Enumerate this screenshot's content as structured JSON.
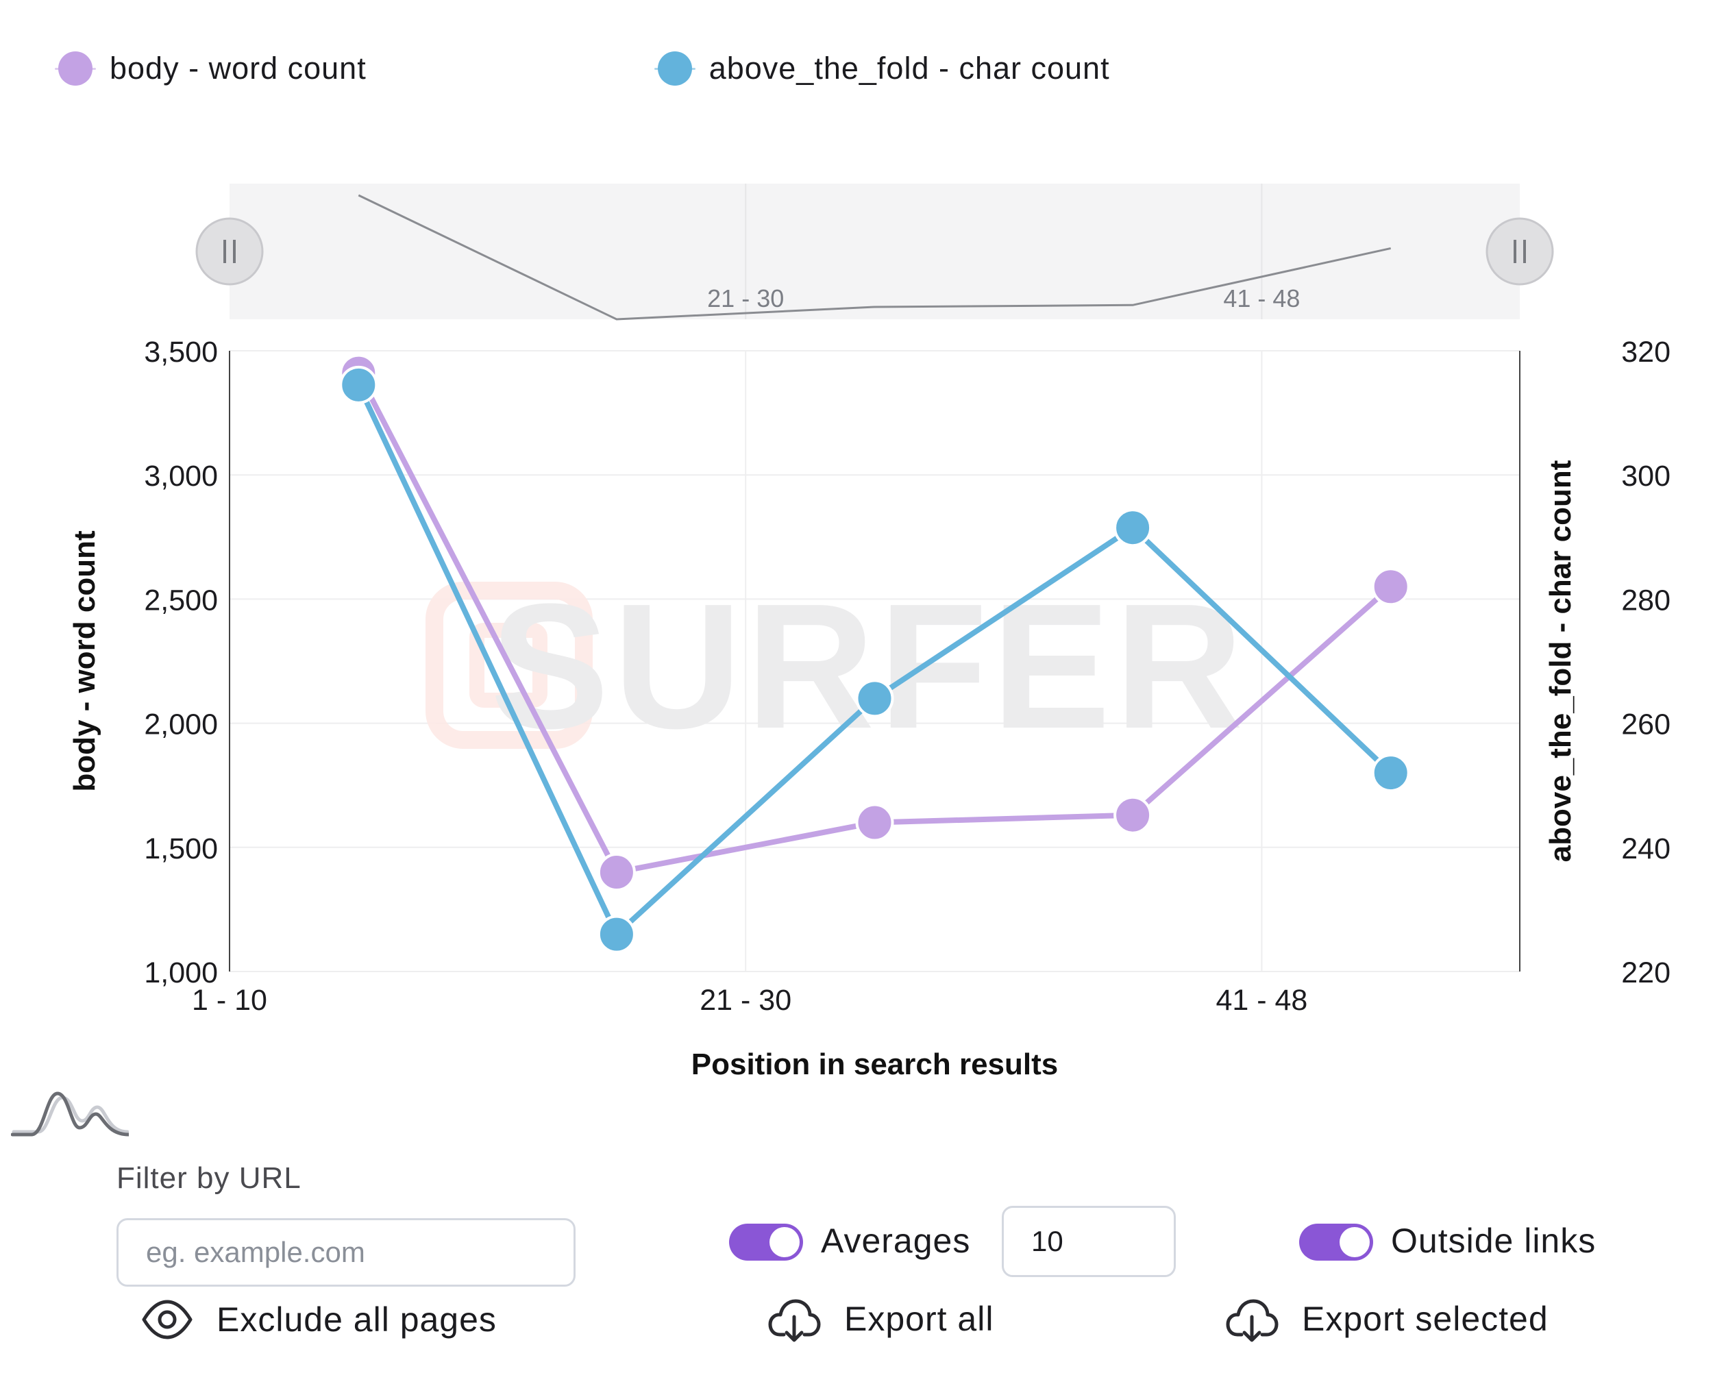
{
  "legend": [
    {
      "label": "body - word count",
      "color": "#c3a2e4",
      "icon": "circle-dot-icon"
    },
    {
      "label": "above_the_fold - char count",
      "color": "#63b3dc",
      "icon": "circle-dot-icon"
    }
  ],
  "chart_data": {
    "type": "line",
    "x": [
      1,
      2,
      3,
      4,
      5
    ],
    "x_ticks": [
      {
        "x": 0.5,
        "label": "1 - 10"
      },
      {
        "x": 2.5,
        "label": "21 - 30"
      },
      {
        "x": 4.5,
        "label": "41 - 48"
      }
    ],
    "xlim": [
      0.5,
      5.5
    ],
    "xlabel": "Position in search results",
    "ylabel_left": "body - word count",
    "ylabel_right": "above_the_fold - char count",
    "ylim_left": [
      1000,
      3500
    ],
    "ylim_right": [
      220,
      320
    ],
    "yticks_left": [
      "1,000",
      "1,500",
      "2,000",
      "2,500",
      "3,000",
      "3,500"
    ],
    "yticks_right": [
      "220",
      "240",
      "260",
      "280",
      "300",
      "320"
    ],
    "series": [
      {
        "name": "body - word count",
        "axis": "left",
        "color": "#c3a2e4",
        "values": [
          3410,
          1400,
          1600,
          1630,
          2550
        ]
      },
      {
        "name": "above_the_fold - char count",
        "axis": "right",
        "color": "#63b3dc",
        "values": [
          314.5,
          226,
          264,
          291.5,
          252
        ]
      }
    ],
    "navigator_labels": [
      "21 - 30",
      "41 - 48"
    ],
    "watermark": "SURFER",
    "grid": true,
    "legend_position": "top-left"
  },
  "controls": {
    "histogram_icon": "distribution-curve-icon",
    "filter_label": "Filter by URL",
    "filter_placeholder": "eg. example.com",
    "averages_label": "Averages",
    "averages_value": "10",
    "averages_toggle_on": true,
    "outside_links_label": "Outside links",
    "outside_links_toggle_on": true,
    "exclude_label": "Exclude all pages",
    "export_all_label": "Export all",
    "export_selected_label": "Export selected",
    "accent_color": "#8a56d6"
  }
}
